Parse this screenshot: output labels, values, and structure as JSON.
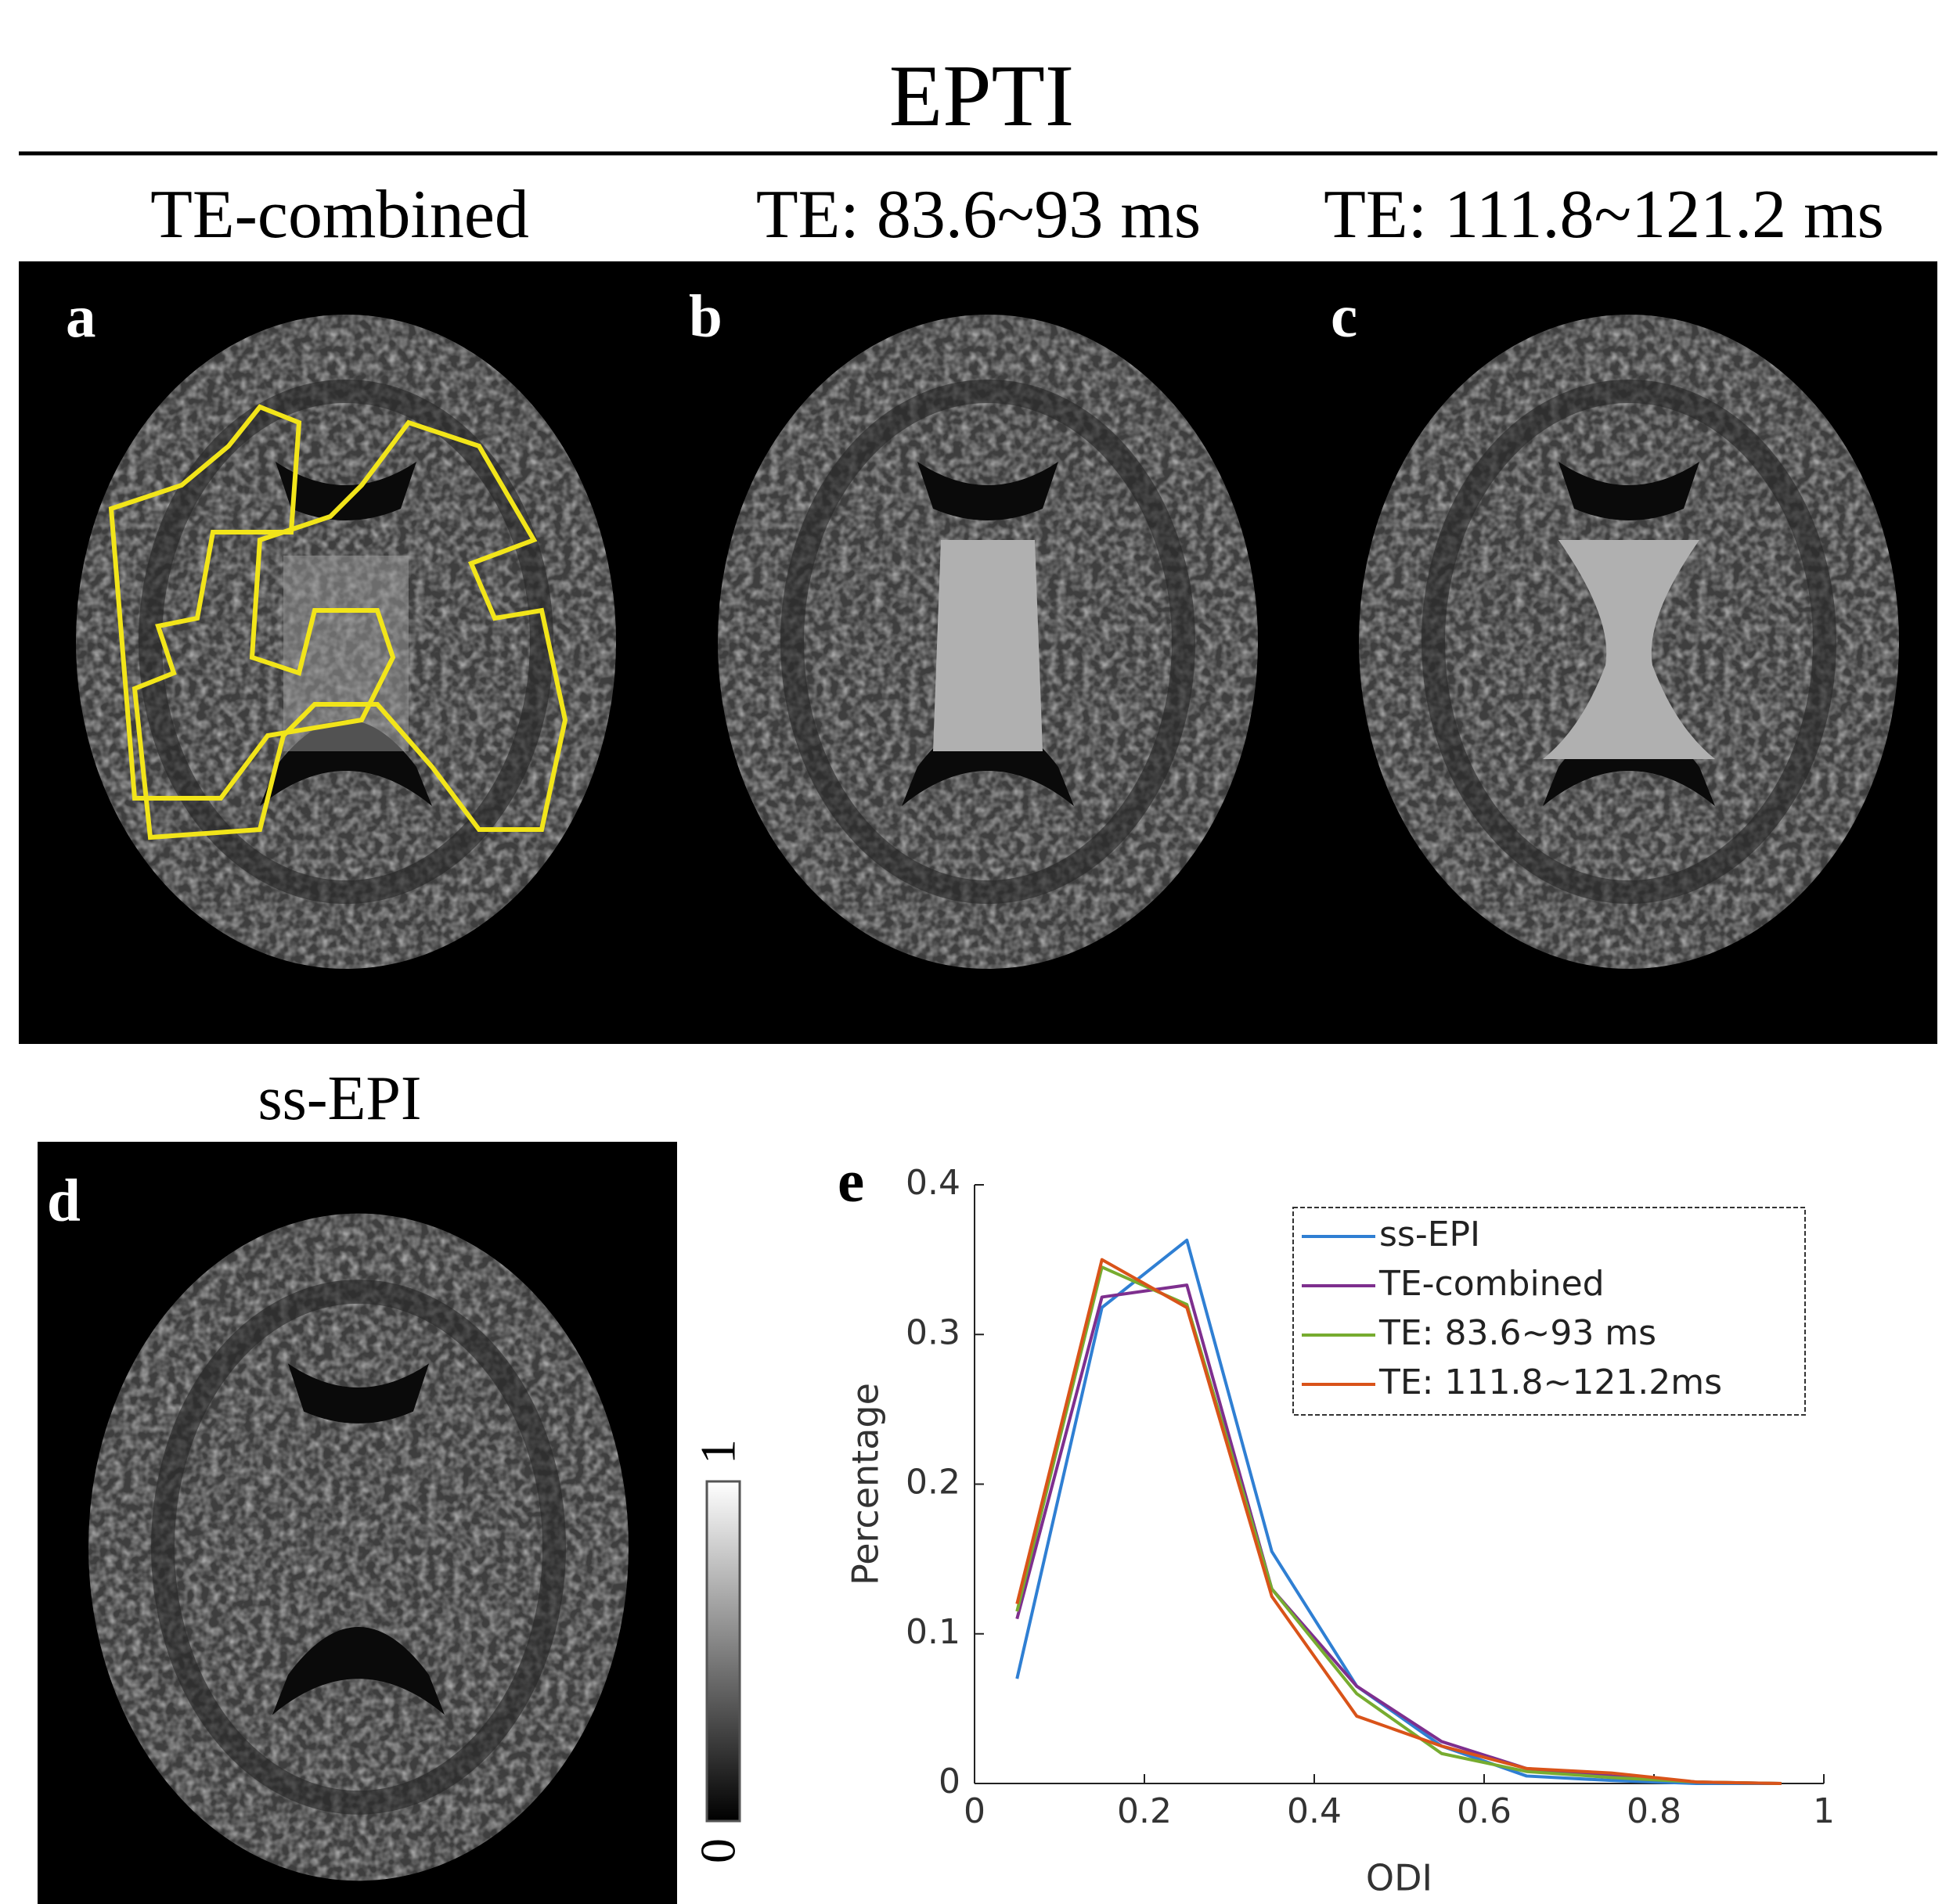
{
  "figure": {
    "title": "EPTI",
    "column_titles": [
      "TE-combined",
      "TE: 83.6~93 ms",
      "TE: 111.8~121.2 ms"
    ],
    "panel_labels": [
      "a",
      "b",
      "c",
      "d",
      "e"
    ],
    "ss_epi_title": "ss-EPI",
    "colorbar_ticks": [
      0,
      1
    ]
  },
  "chart_data": {
    "type": "line",
    "x": [
      0.05,
      0.15,
      0.25,
      0.35,
      0.45,
      0.55,
      0.65,
      0.75,
      0.85,
      0.95
    ],
    "series": [
      {
        "name": "ss-EPI",
        "color": "#2f7fd3",
        "values": [
          0.07,
          0.318,
          0.363,
          0.155,
          0.065,
          0.025,
          0.005,
          0.002,
          0,
          0
        ]
      },
      {
        "name": "TE-combined",
        "color": "#7e2f8e",
        "values": [
          0.11,
          0.325,
          0.333,
          0.13,
          0.065,
          0.028,
          0.01,
          0.005,
          0.001,
          0
        ]
      },
      {
        "name": "TE: 83.6~93 ms",
        "color": "#77ac30",
        "values": [
          0.115,
          0.345,
          0.32,
          0.13,
          0.06,
          0.02,
          0.008,
          0.004,
          0.001,
          0
        ]
      },
      {
        "name": "TE: 111.8~121.2ms",
        "color": "#d95319",
        "values": [
          0.12,
          0.35,
          0.318,
          0.125,
          0.045,
          0.025,
          0.01,
          0.007,
          0.001,
          0
        ]
      }
    ],
    "xlabel": "ODI",
    "ylabel": "Percentage",
    "xlim": [
      0,
      1
    ],
    "xticks": [
      0,
      0.2,
      0.4,
      0.6,
      0.8,
      1
    ],
    "ylim": [
      0,
      0.4
    ],
    "yticks": [
      0,
      0.1,
      0.2,
      0.3,
      0.4
    ],
    "legend": "upper right"
  }
}
